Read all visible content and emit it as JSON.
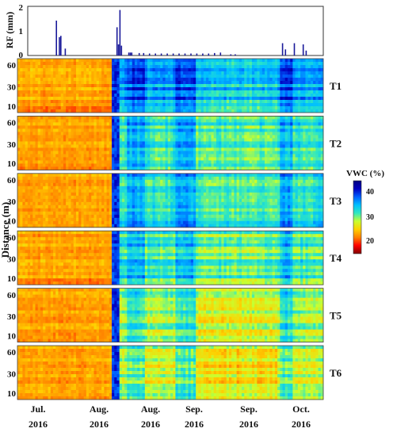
{
  "chart_data": [
    {
      "type": "bar",
      "ylabel": "RF (mm)",
      "ylim": [
        0,
        2
      ],
      "yticks": [
        "0",
        "1",
        "2"
      ],
      "bars": [
        {
          "x": 0.095,
          "y": 1.42
        },
        {
          "x": 0.105,
          "y": 0.75
        },
        {
          "x": 0.11,
          "y": 0.8
        },
        {
          "x": 0.125,
          "y": 0.28
        },
        {
          "x": 0.3,
          "y": 1.15
        },
        {
          "x": 0.305,
          "y": 0.45
        },
        {
          "x": 0.31,
          "y": 1.85
        },
        {
          "x": 0.315,
          "y": 0.4
        },
        {
          "x": 0.34,
          "y": 0.12
        },
        {
          "x": 0.345,
          "y": 0.12
        },
        {
          "x": 0.35,
          "y": 0.12
        },
        {
          "x": 0.375,
          "y": 0.1
        },
        {
          "x": 0.39,
          "y": 0.1
        },
        {
          "x": 0.41,
          "y": 0.08
        },
        {
          "x": 0.43,
          "y": 0.08
        },
        {
          "x": 0.45,
          "y": 0.08
        },
        {
          "x": 0.47,
          "y": 0.08
        },
        {
          "x": 0.49,
          "y": 0.08
        },
        {
          "x": 0.51,
          "y": 0.08
        },
        {
          "x": 0.53,
          "y": 0.08
        },
        {
          "x": 0.55,
          "y": 0.08
        },
        {
          "x": 0.57,
          "y": 0.08
        },
        {
          "x": 0.59,
          "y": 0.08
        },
        {
          "x": 0.61,
          "y": 0.08
        },
        {
          "x": 0.63,
          "y": 0.1
        },
        {
          "x": 0.65,
          "y": 0.12
        },
        {
          "x": 0.685,
          "y": 0.05
        },
        {
          "x": 0.7,
          "y": 0.05
        },
        {
          "x": 0.86,
          "y": 0.5
        },
        {
          "x": 0.87,
          "y": 0.25
        },
        {
          "x": 0.9,
          "y": 0.5
        },
        {
          "x": 0.93,
          "y": 0.45
        },
        {
          "x": 0.94,
          "y": 0.2
        }
      ]
    },
    {
      "type": "heatmap",
      "ylabel": "Distance (m)",
      "yticks": [
        "60",
        "30",
        "10"
      ],
      "xticks": [
        {
          "month": "Jul.",
          "year": "2016"
        },
        {
          "month": "Aug.",
          "year": "2016"
        },
        {
          "month": "Aug.",
          "year": "2016"
        },
        {
          "month": "Sep.",
          "year": "2016"
        },
        {
          "month": "Sep.",
          "year": "2016"
        },
        {
          "month": "Oct.",
          "year": "2016"
        }
      ],
      "panels": [
        {
          "label": "T1",
          "dry_end": 0.31,
          "mid_vwc": 36,
          "late_vwc": 34
        },
        {
          "label": "T2",
          "dry_end": 0.31,
          "mid_vwc": 33,
          "late_vwc": 32
        },
        {
          "label": "T3",
          "dry_end": 0.31,
          "mid_vwc": 33,
          "late_vwc": 32
        },
        {
          "label": "T4",
          "dry_end": 0.31,
          "mid_vwc": 32,
          "late_vwc": 31
        },
        {
          "label": "T5",
          "dry_end": 0.31,
          "mid_vwc": 30,
          "late_vwc": 28
        },
        {
          "label": "T6",
          "dry_end": 0.31,
          "mid_vwc": 29,
          "late_vwc": 27
        }
      ],
      "colorbar": {
        "label": "VWC (%)",
        "range": [
          16,
          45
        ],
        "ticks": [
          "40",
          "30",
          "20"
        ],
        "colors": [
          "#7f0000",
          "#ff0000",
          "#ff8000",
          "#ffd000",
          "#c8ff30",
          "#30e8c0",
          "#00c0ff",
          "#0060ff",
          "#0000c0",
          "#000080"
        ]
      }
    }
  ]
}
